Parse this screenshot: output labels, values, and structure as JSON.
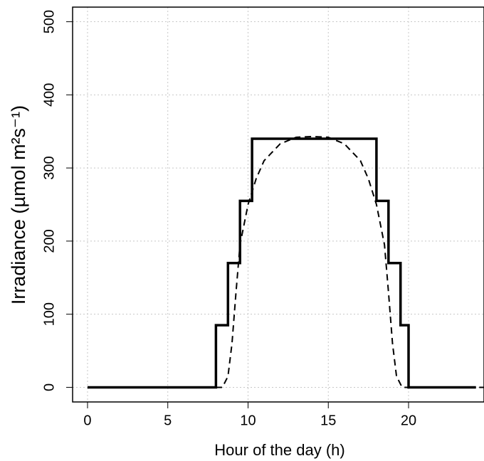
{
  "chart_data": {
    "type": "line",
    "x_label": "Hour of the day (h)",
    "y_label": "Irradiance (µmol m²s⁻¹)",
    "xlim": [
      -0.93,
      24.7
    ],
    "ylim": [
      -20,
      520
    ],
    "xticks": [
      0,
      5,
      10,
      15,
      20
    ],
    "yticks": [
      0,
      100,
      200,
      300,
      400,
      500
    ],
    "grid": true,
    "series": [
      {
        "color": "#000000",
        "dashed": false,
        "x": [
          0,
          8,
          8,
          8.75,
          8.75,
          9.5,
          9.5,
          10.25,
          10.25,
          18,
          18,
          18.75,
          18.75,
          19.5,
          19.5,
          20,
          20,
          24.2
        ],
        "values": [
          0,
          0,
          85,
          85,
          170,
          170,
          255,
          255,
          340,
          340,
          255,
          255,
          170,
          170,
          85,
          85,
          0,
          0
        ]
      },
      {
        "color": "#000000",
        "dashed": true,
        "x": [
          0,
          8.4,
          8.75,
          9,
          9.25,
          9.5,
          10,
          10.5,
          11,
          12,
          13,
          14,
          15,
          16,
          17,
          17.5,
          18,
          18.5,
          18.75,
          19,
          19.25,
          19.6,
          24.7
        ],
        "values": [
          0,
          0,
          15,
          60,
          130,
          195,
          250,
          285,
          310,
          333,
          342,
          343,
          342,
          333,
          310,
          285,
          250,
          195,
          130,
          60,
          15,
          0,
          0
        ]
      }
    ]
  }
}
